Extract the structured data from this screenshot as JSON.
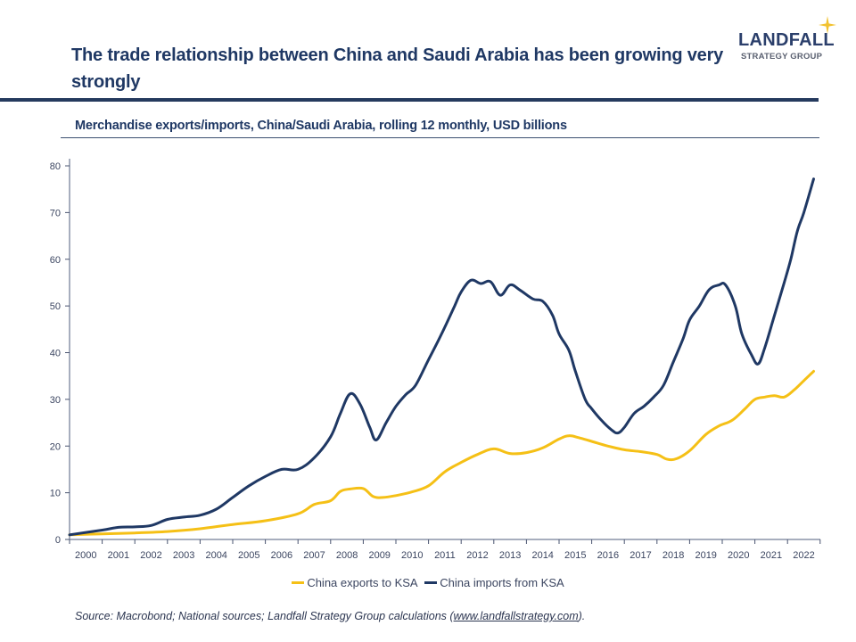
{
  "header": {
    "title": "The trade relationship between China and Saudi Arabia has been growing very strongly",
    "logo": {
      "name": "LANDFALL",
      "tagline": "STRATEGY GROUP",
      "star_icon": "four-point-star",
      "star_color": "#f2c230"
    }
  },
  "colors": {
    "exports": "#f5c016",
    "imports": "#1f3864",
    "title": "#1f3864",
    "axis": "#8a93a8"
  },
  "chart_data": {
    "type": "line",
    "title": "Merchandise exports/imports, China/Saudi Arabia, rolling 12 monthly, USD billions",
    "xlabel": "",
    "ylabel": "",
    "xlim": [
      2000,
      2023
    ],
    "ylim": [
      0,
      80
    ],
    "yticks": [
      0,
      10,
      20,
      30,
      40,
      50,
      60,
      70,
      80
    ],
    "xtick_labels": [
      "2000",
      "2001",
      "2002",
      "2003",
      "2004",
      "2005",
      "2006",
      "2007",
      "2008",
      "2009",
      "2010",
      "2011",
      "2012",
      "2013",
      "2014",
      "2015",
      "2016",
      "2017",
      "2018",
      "2019",
      "2020",
      "2021",
      "2022"
    ],
    "grid": false,
    "legend_position": "bottom-center",
    "series": [
      {
        "name": "China exports to KSA",
        "color": "#f5c016",
        "x": [
          2000.0,
          2001.0,
          2002.0,
          2003.0,
          2004.0,
          2005.0,
          2006.0,
          2007.0,
          2007.5,
          2008.0,
          2008.3,
          2008.6,
          2009.0,
          2009.3,
          2009.6,
          2010.0,
          2010.5,
          2011.0,
          2011.5,
          2012.0,
          2012.5,
          2013.0,
          2013.5,
          2014.0,
          2014.5,
          2015.0,
          2015.3,
          2015.6,
          2016.0,
          2016.5,
          2017.0,
          2017.5,
          2018.0,
          2018.3,
          2018.6,
          2019.0,
          2019.5,
          2019.9,
          2020.3,
          2020.7,
          2021.0,
          2021.3,
          2021.6,
          2021.9,
          2022.2,
          2022.5,
          2022.8
        ],
        "values": [
          1.0,
          1.2,
          1.4,
          1.7,
          2.3,
          3.2,
          4.0,
          5.5,
          7.5,
          8.3,
          10.3,
          10.8,
          10.9,
          9.2,
          9.0,
          9.4,
          10.2,
          11.5,
          14.5,
          16.5,
          18.2,
          19.4,
          18.4,
          18.6,
          19.6,
          21.5,
          22.2,
          21.8,
          21.0,
          20.0,
          19.2,
          18.8,
          18.2,
          17.2,
          17.3,
          19.0,
          22.5,
          24.3,
          25.5,
          28.0,
          30.0,
          30.5,
          30.8,
          30.5,
          32.0,
          34.0,
          36.0
        ]
      },
      {
        "name": "China imports from KSA",
        "color": "#1f3864",
        "x": [
          2000.0,
          2001.0,
          2001.5,
          2002.0,
          2002.5,
          2003.0,
          2003.5,
          2004.0,
          2004.5,
          2005.0,
          2005.5,
          2006.0,
          2006.5,
          2007.0,
          2007.5,
          2008.0,
          2008.3,
          2008.6,
          2008.9,
          2009.2,
          2009.4,
          2009.7,
          2010.0,
          2010.3,
          2010.6,
          2011.0,
          2011.4,
          2011.8,
          2012.0,
          2012.3,
          2012.6,
          2012.9,
          2013.2,
          2013.5,
          2013.8,
          2014.2,
          2014.5,
          2014.8,
          2015.0,
          2015.3,
          2015.5,
          2015.8,
          2016.0,
          2016.3,
          2016.6,
          2016.8,
          2017.0,
          2017.3,
          2017.6,
          2017.9,
          2018.2,
          2018.5,
          2018.8,
          2019.0,
          2019.3,
          2019.6,
          2019.9,
          2020.1,
          2020.4,
          2020.6,
          2020.9,
          2021.1,
          2021.3,
          2021.6,
          2021.9,
          2022.1,
          2022.3,
          2022.5,
          2022.8
        ],
        "values": [
          1.0,
          2.0,
          2.6,
          2.7,
          3.0,
          4.3,
          4.8,
          5.2,
          6.5,
          9.0,
          11.5,
          13.5,
          15.0,
          15.0,
          17.5,
          22.0,
          27.0,
          31.2,
          29.0,
          24.0,
          21.3,
          25.0,
          28.5,
          31.0,
          33.0,
          38.5,
          44.0,
          50.0,
          53.0,
          55.5,
          54.8,
          55.2,
          52.3,
          54.5,
          53.4,
          51.5,
          51.0,
          48.0,
          44.0,
          40.5,
          36.0,
          30.0,
          28.0,
          25.5,
          23.5,
          22.8,
          24.0,
          27.0,
          28.5,
          30.5,
          33.0,
          38.0,
          43.0,
          47.0,
          50.0,
          53.5,
          54.5,
          54.5,
          50.0,
          44.0,
          39.5,
          37.6,
          41.0,
          48.0,
          55.0,
          60.0,
          66.0,
          70.0,
          77.2
        ]
      }
    ]
  },
  "legend": {
    "items": [
      {
        "label": "China exports to KSA",
        "color": "#f5c016"
      },
      {
        "label": "China imports from KSA",
        "color": "#1f3864"
      }
    ]
  },
  "footer": {
    "source_prefix": "Source: Macrobond; National sources; Landfall Strategy Group calculations (",
    "source_link": "www.landfallstrategy.com",
    "source_suffix": ")."
  }
}
